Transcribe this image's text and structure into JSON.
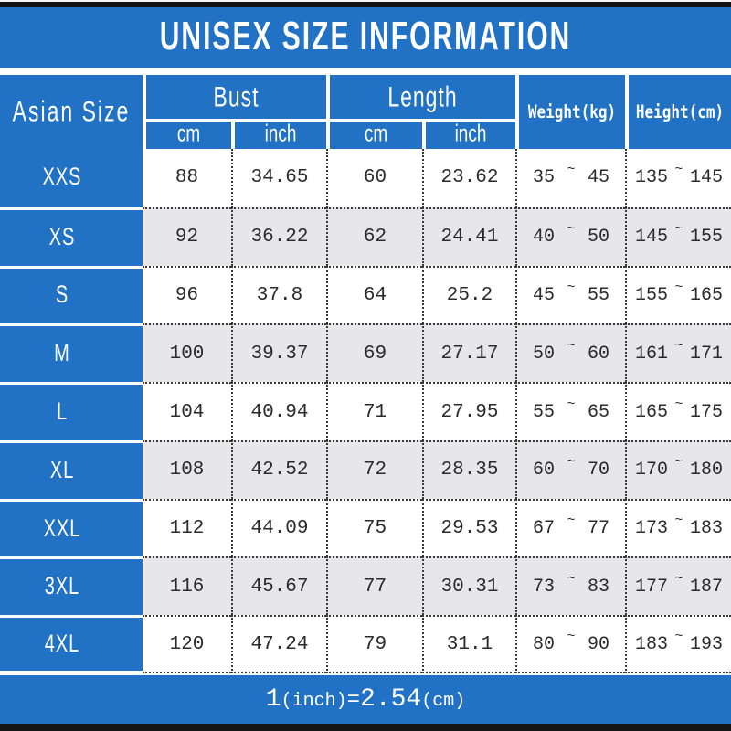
{
  "title": "UNISEX SIZE INFORMATION",
  "table": {
    "corner": "Asian Size",
    "groups": [
      {
        "label": "Bust",
        "subs": [
          "cm",
          "inch"
        ]
      },
      {
        "label": "Length",
        "subs": [
          "cm",
          "inch"
        ]
      }
    ],
    "singles": [
      "Weight(kg)",
      "Height(cm)"
    ],
    "range_separator": "~",
    "rows": [
      {
        "size": "XXS",
        "bust_cm": "88",
        "bust_inch": "34.65",
        "length_cm": "60",
        "length_inch": "23.62",
        "weight_min": "35",
        "weight_max": "45",
        "height_min": "135",
        "height_max": "145"
      },
      {
        "size": "XS",
        "bust_cm": "92",
        "bust_inch": "36.22",
        "length_cm": "62",
        "length_inch": "24.41",
        "weight_min": "40",
        "weight_max": "50",
        "height_min": "145",
        "height_max": "155"
      },
      {
        "size": "S",
        "bust_cm": "96",
        "bust_inch": "37.8",
        "length_cm": "64",
        "length_inch": "25.2",
        "weight_min": "45",
        "weight_max": "55",
        "height_min": "155",
        "height_max": "165"
      },
      {
        "size": "M",
        "bust_cm": "100",
        "bust_inch": "39.37",
        "length_cm": "69",
        "length_inch": "27.17",
        "weight_min": "50",
        "weight_max": "60",
        "height_min": "161",
        "height_max": "171"
      },
      {
        "size": "L",
        "bust_cm": "104",
        "bust_inch": "40.94",
        "length_cm": "71",
        "length_inch": "27.95",
        "weight_min": "55",
        "weight_max": "65",
        "height_min": "165",
        "height_max": "175"
      },
      {
        "size": "XL",
        "bust_cm": "108",
        "bust_inch": "42.52",
        "length_cm": "72",
        "length_inch": "28.35",
        "weight_min": "60",
        "weight_max": "70",
        "height_min": "170",
        "height_max": "180"
      },
      {
        "size": "XXL",
        "bust_cm": "112",
        "bust_inch": "44.09",
        "length_cm": "75",
        "length_inch": "29.53",
        "weight_min": "67",
        "weight_max": "77",
        "height_min": "173",
        "height_max": "183"
      },
      {
        "size": "3XL",
        "bust_cm": "116",
        "bust_inch": "45.67",
        "length_cm": "77",
        "length_inch": "30.31",
        "weight_min": "73",
        "weight_max": "83",
        "height_min": "177",
        "height_max": "187"
      },
      {
        "size": "4XL",
        "bust_cm": "120",
        "bust_inch": "47.24",
        "length_cm": "79",
        "length_inch": "31.1",
        "weight_min": "80",
        "weight_max": "90",
        "height_min": "183",
        "height_max": "193"
      }
    ]
  },
  "footer": {
    "num1": "1",
    "unit1": "(inch)",
    "eq": "=",
    "num2": "2.54",
    "unit2": "(cm)",
    "full_note": "1(inch)=2.54(cm)"
  },
  "colors": {
    "accent_blue": "#2171c4",
    "row_alt_gray": "#e7e6e9",
    "bar_black": "#141414",
    "text_dark": "#2a2a2a",
    "text_white": "#ffffff"
  }
}
